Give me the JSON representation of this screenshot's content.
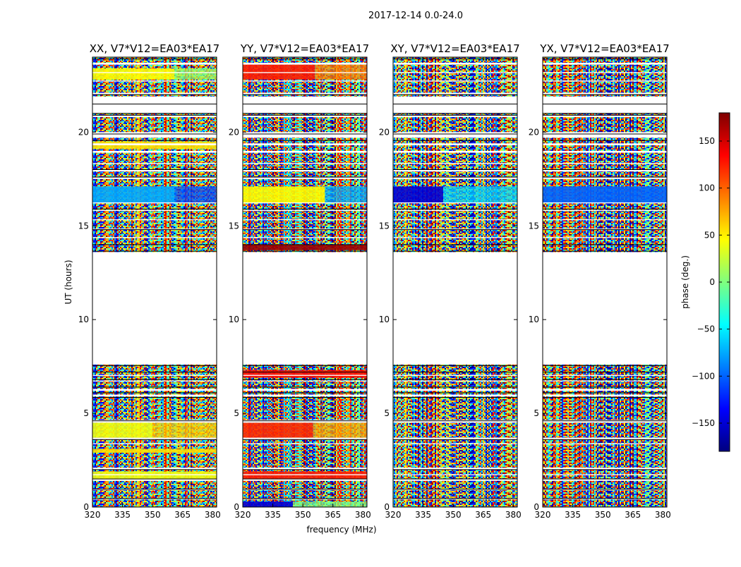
{
  "figure_title": "2017-12-14 0.0-24.0",
  "chart_data": {
    "type": "heatmap",
    "title": "2017-12-14 0.0-24.0",
    "xlabel": "frequency (MHz)",
    "ylabel": "UT (hours)",
    "xlim": [
      320,
      382
    ],
    "ylim": [
      0,
      24
    ],
    "x_ticks": [
      320,
      335,
      350,
      365,
      380
    ],
    "y_ticks": [
      0,
      5,
      10,
      15,
      20
    ],
    "colorbar": {
      "label": "phase (deg.)",
      "range": [
        -180,
        180
      ],
      "ticks": [
        150,
        100,
        50,
        0,
        -50,
        -100,
        -150
      ],
      "tick_labels": [
        "150",
        "100",
        "50",
        "0",
        "−50",
        "−100",
        "−150"
      ],
      "colormap": [
        "#00007f",
        "#0000ff",
        "#007fff",
        "#00ffff",
        "#7fff7f",
        "#ffff00",
        "#ff7f00",
        "#ff0000",
        "#7f0000"
      ]
    },
    "flagged_ut_range": [
      7.6,
      13.6
    ],
    "panels": [
      {
        "title": "XX, V7*V12=EA03*EA17",
        "coherent_bands": [
          {
            "ut": [
              16.2,
              17.1
            ],
            "phase": -75,
            "freq_split": 361,
            "phase_after": -110
          },
          {
            "ut": [
              22.8,
              23.4
            ],
            "phase": 45,
            "freq_split": 361,
            "phase_after": 10
          },
          {
            "ut": [
              3.7,
              4.5
            ],
            "phase": 40,
            "freq_split": 350,
            "phase_after": 60
          },
          {
            "ut": [
              2.9,
              3.1
            ],
            "phase": 55,
            "freq_split": 382,
            "phase_after": 55
          },
          {
            "ut": [
              1.4,
              1.9
            ],
            "phase": 40,
            "freq_split": 382,
            "phase_after": 40
          },
          {
            "ut": [
              19.1,
              19.5
            ],
            "phase": 55,
            "freq_split": 382,
            "phase_after": 55
          }
        ]
      },
      {
        "title": "YY, V7*V12=EA03*EA17",
        "coherent_bands": [
          {
            "ut": [
              16.2,
              17.1
            ],
            "phase": 45,
            "freq_split": 361,
            "phase_after": -75
          },
          {
            "ut": [
              22.8,
              23.6
            ],
            "phase": 125,
            "freq_split": 356,
            "phase_after": 90
          },
          {
            "ut": [
              13.7,
              14.0
            ],
            "phase": 170,
            "freq_split": 382,
            "phase_after": 170
          },
          {
            "ut": [
              6.9,
              7.3
            ],
            "phase": 130,
            "freq_split": 382,
            "phase_after": 130
          },
          {
            "ut": [
              3.7,
              4.5
            ],
            "phase": 120,
            "freq_split": 355,
            "phase_after": 75
          },
          {
            "ut": [
              1.4,
              1.9
            ],
            "phase": 125,
            "freq_split": 382,
            "phase_after": 125
          },
          {
            "ut": [
              0.0,
              0.3
            ],
            "phase": -150,
            "freq_split": 345,
            "phase_after": 0
          }
        ]
      },
      {
        "title": "XY, V7*V12=EA03*EA17",
        "coherent_bands": [
          {
            "ut": [
              16.2,
              17.1
            ],
            "phase": -150,
            "freq_split": 345,
            "phase_after": -60
          }
        ]
      },
      {
        "title": "YX, V7*V12=EA03*EA17",
        "coherent_bands": [
          {
            "ut": [
              16.2,
              17.1
            ],
            "phase": -100,
            "freq_split": 382,
            "phase_after": -100
          }
        ]
      }
    ]
  }
}
